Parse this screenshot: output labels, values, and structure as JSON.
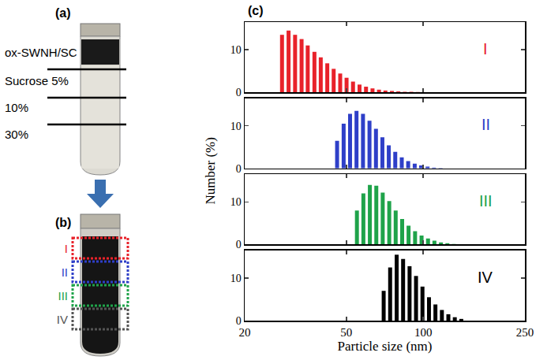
{
  "panel_a": {
    "letter": "(a)",
    "labels": [
      "ox-SWNH/SC",
      "Sucrose 5%",
      "10%",
      "30%"
    ]
  },
  "panel_b": {
    "letter": "(b)",
    "fractions": [
      {
        "name": "I",
        "color": "#e8222a"
      },
      {
        "name": "II",
        "color": "#2e3fc8"
      },
      {
        "name": "III",
        "color": "#1fa34a"
      },
      {
        "name": "IV",
        "color": "#555555"
      }
    ]
  },
  "panel_c": {
    "letter": "(c)"
  },
  "chart_data": [
    {
      "type": "bar",
      "label": "I",
      "color": "#e8222a",
      "log": "x",
      "tick_labels": "y",
      "y_label": "Number (%)",
      "x": [
        28,
        29.7,
        31.5,
        33.4,
        35.3,
        37.5,
        39.7,
        42.1,
        44.6,
        47.3,
        50.1,
        53.1,
        56.3,
        59.7,
        63.3,
        67.1,
        71.1,
        75.4,
        79.9,
        84.7,
        89.8,
        95.2
      ],
      "values": [
        13.5,
        14.5,
        13.5,
        12.5,
        11,
        9.5,
        8.2,
        6.8,
        5.5,
        4.4,
        3.4,
        2.5,
        1.8,
        1.3,
        0.9,
        0.6,
        0.4,
        0.3,
        0.2,
        0.1,
        0.1,
        0.05
      ],
      "xlim": [
        20,
        250
      ],
      "xticks": [
        20,
        50,
        100,
        250
      ],
      "ylim": [
        0,
        16.5
      ],
      "yticks": [
        0,
        10
      ]
    },
    {
      "type": "bar",
      "label": "II",
      "color": "#2e3fc8",
      "log": "x",
      "tick_labels": "y",
      "x": [
        46,
        48.8,
        51.7,
        54.8,
        58.1,
        61.6,
        65.3,
        69.2,
        73.3,
        77.7,
        82.4,
        87.3,
        92.6,
        98.1,
        104,
        110.2,
        116.9
      ],
      "values": [
        6.5,
        10.5,
        12.8,
        13.5,
        12.8,
        11.2,
        9.3,
        7.3,
        5.4,
        3.9,
        2.6,
        1.7,
        1.1,
        0.7,
        0.4,
        0.2,
        0.1
      ],
      "xlim": [
        20,
        250
      ],
      "xticks": [
        20,
        50,
        100,
        250
      ],
      "ylim": [
        0,
        16.5
      ],
      "yticks": [
        0,
        10
      ]
    },
    {
      "type": "bar",
      "label": "III",
      "color": "#1fa34a",
      "log": "x",
      "tick_labels": "y",
      "x": [
        55,
        58.3,
        61.8,
        65.5,
        69.4,
        73.6,
        78,
        82.7,
        87.6,
        92.9,
        98.5,
        104.4,
        110.6,
        117.3,
        124.3,
        131.8
      ],
      "values": [
        8,
        12,
        14,
        13.8,
        12.2,
        10.2,
        8,
        6,
        4.4,
        3.1,
        2.1,
        1.4,
        0.9,
        0.5,
        0.3,
        0.1
      ],
      "xlim": [
        20,
        250
      ],
      "xticks": [
        20,
        50,
        100,
        250
      ],
      "ylim": [
        0,
        16.5
      ],
      "yticks": [
        0,
        10
      ]
    },
    {
      "type": "bar",
      "label": "IV",
      "color": "#000000",
      "log": "x",
      "x_label": "Particle size (nm)",
      "x": [
        70,
        74.2,
        78.7,
        83.4,
        88.4,
        93.7,
        99.3,
        105.3,
        111.6,
        118.3,
        125.4,
        132.9,
        140.9
      ],
      "values": [
        7,
        12.5,
        15.5,
        14.5,
        12.8,
        10.5,
        8,
        5.5,
        3.8,
        2.5,
        1.5,
        0.8,
        0.4
      ],
      "xlim": [
        20,
        250
      ],
      "xticks": [
        20,
        50,
        100,
        250
      ],
      "ylim": [
        0,
        16.5
      ],
      "yticks": [
        0,
        10
      ]
    }
  ]
}
